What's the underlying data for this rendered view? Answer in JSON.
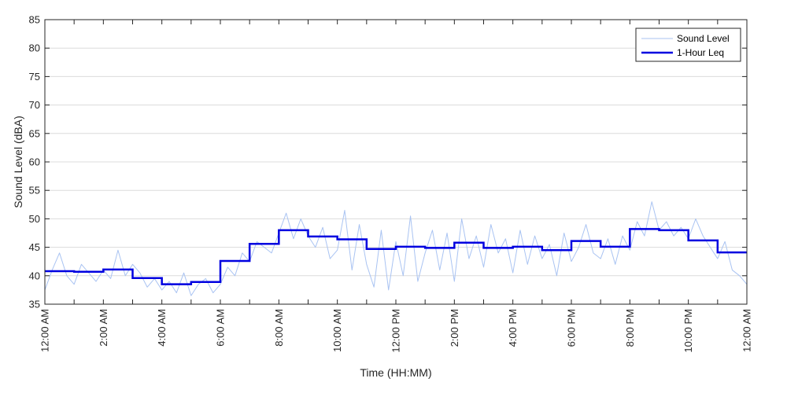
{
  "chart_data": {
    "type": "line",
    "title": "",
    "xlabel": "Time (HH:MM)",
    "ylabel": "Sound Level (dBA)",
    "ylim": [
      35,
      85
    ],
    "xlim_hours": [
      0,
      24
    ],
    "grid": "horizontal",
    "legend_position": "top-right",
    "y_ticks": [
      35,
      40,
      45,
      50,
      55,
      60,
      65,
      70,
      75,
      80,
      85
    ],
    "x_tick_labels": [
      "12:00 AM",
      "2:00 AM",
      "4:00 AM",
      "6:00 AM",
      "8:00 AM",
      "10:00 AM",
      "12:00 PM",
      "2:00 PM",
      "4:00 PM",
      "6:00 PM",
      "8:00 PM",
      "10:00 PM",
      "12:00 AM"
    ],
    "series": [
      {
        "name": "Sound Level",
        "color": "#a9c3f2",
        "style": "thin line",
        "x_hours": [
          0,
          0.25,
          0.5,
          0.75,
          1,
          1.25,
          1.5,
          1.75,
          2,
          2.25,
          2.5,
          2.75,
          3,
          3.25,
          3.5,
          3.75,
          4,
          4.25,
          4.5,
          4.75,
          5,
          5.25,
          5.5,
          5.75,
          6,
          6.25,
          6.5,
          6.75,
          7,
          7.25,
          7.5,
          7.75,
          8,
          8.25,
          8.5,
          8.75,
          9,
          9.25,
          9.5,
          9.75,
          10,
          10.25,
          10.5,
          10.75,
          11,
          11.25,
          11.5,
          11.75,
          12,
          12.25,
          12.5,
          12.75,
          13,
          13.25,
          13.5,
          13.75,
          14,
          14.25,
          14.5,
          14.75,
          15,
          15.25,
          15.5,
          15.75,
          16,
          16.25,
          16.5,
          16.75,
          17,
          17.25,
          17.5,
          17.75,
          18,
          18.25,
          18.5,
          18.75,
          19,
          19.25,
          19.5,
          19.75,
          20,
          20.25,
          20.5,
          20.75,
          21,
          21.25,
          21.5,
          21.75,
          22,
          22.25,
          22.5,
          22.75,
          23,
          23.25,
          23.5,
          23.75,
          24
        ],
        "values": [
          37.5,
          41,
          44,
          40,
          38.5,
          42,
          40.5,
          39,
          41,
          39.5,
          44.5,
          40,
          42,
          40.5,
          38,
          39.5,
          37.5,
          39,
          37,
          40.5,
          36.5,
          38.5,
          39.5,
          37,
          38.5,
          41.5,
          40,
          44,
          42.5,
          46,
          45,
          44,
          47.5,
          51,
          46.5,
          50,
          47,
          45,
          48.5,
          43,
          44.5,
          51.5,
          41,
          49,
          42,
          38,
          48,
          37.5,
          46,
          40,
          50.5,
          39,
          44,
          48,
          41,
          47.5,
          39,
          50,
          43,
          47,
          41.5,
          49,
          44,
          46.5,
          40.5,
          48,
          42,
          47,
          43,
          45.5,
          40,
          47.5,
          42.5,
          45,
          49,
          44,
          43,
          46.5,
          42,
          47,
          44.5,
          49.5,
          47,
          53,
          48,
          49.5,
          47,
          48.5,
          46.5,
          50,
          47,
          45,
          43,
          46,
          41,
          40,
          38.5
        ]
      },
      {
        "name": "1-Hour Leq",
        "color": "#0000e0",
        "style": "thick step",
        "hourly_values": [
          40.8,
          40.7,
          41.1,
          39.6,
          38.5,
          38.9,
          42.6,
          45.6,
          48.0,
          46.9,
          46.4,
          44.7,
          45.1,
          44.9,
          45.8,
          44.9,
          45.1,
          44.5,
          46.1,
          45.1,
          48.2,
          48.0,
          46.2,
          44.1
        ]
      }
    ]
  }
}
